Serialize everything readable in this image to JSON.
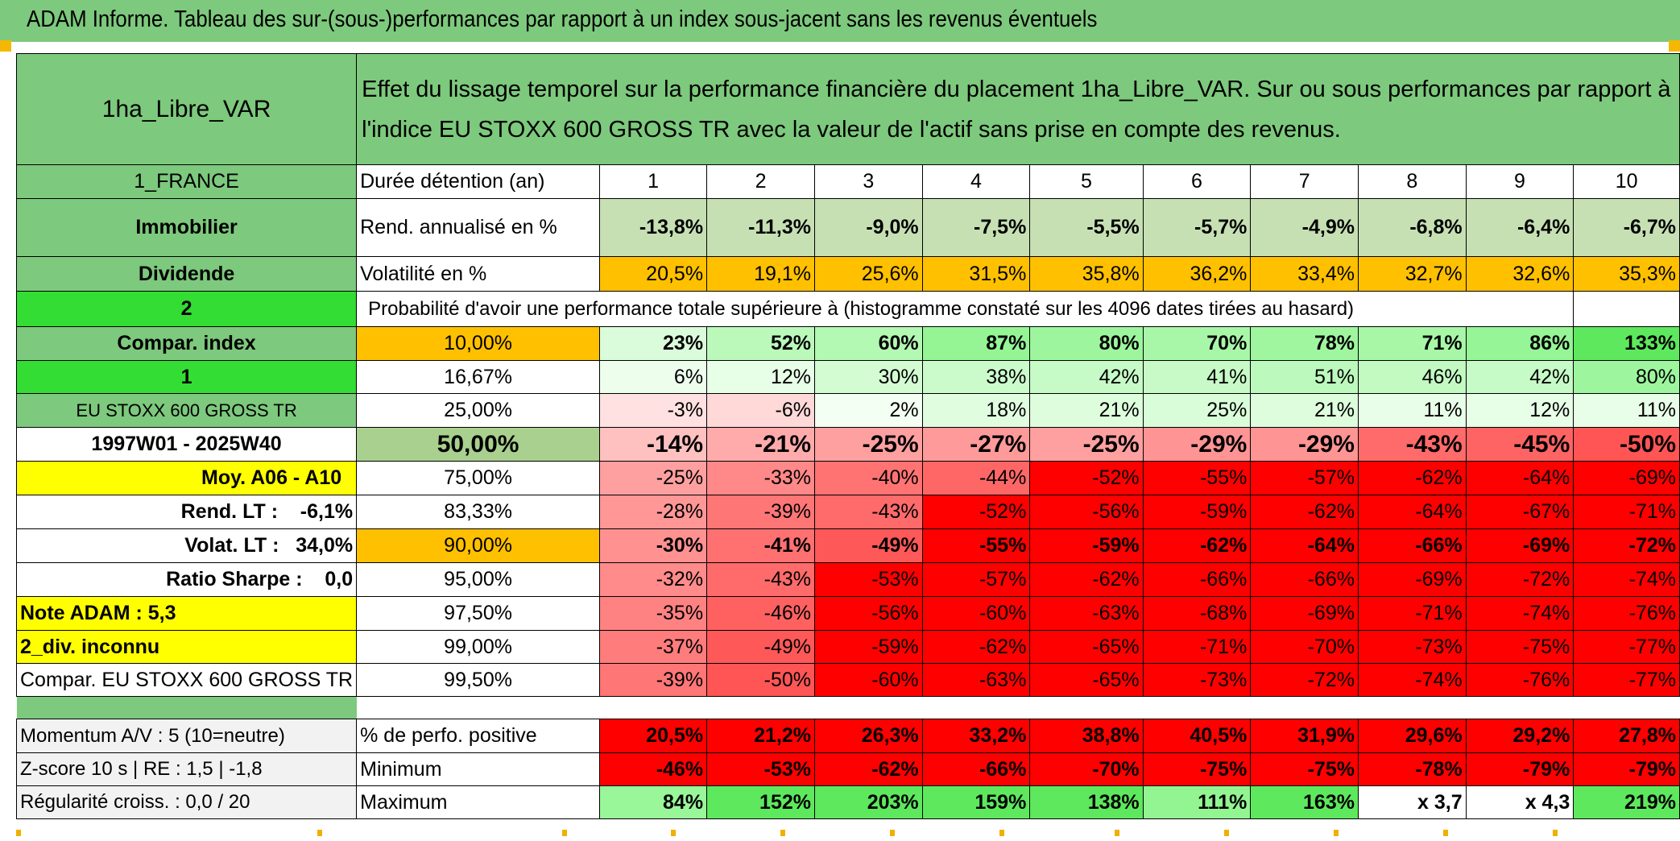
{
  "title": "ADAM Informe. Tableau des sur-(sous-)performances par rapport à un index sous-jacent sans les revenus éventuels",
  "fund_name": "1ha_Libre_VAR",
  "description": "Effet du lissage temporel sur la performance financière du placement 1ha_Libre_VAR. Sur ou sous performances par rapport à l'indice EU STOXX 600 GROSS TR avec la valeur de l'actif sans prise en compte des revenus.",
  "left": {
    "country": "1_FRANCE",
    "sector": "Immobilier",
    "type": "Dividende",
    "num2": "2",
    "compar_index": "Compar. index",
    "num1": "1",
    "index_name": "EU STOXX 600 GROSS TR",
    "period": "1997W01 - 2025W40",
    "moy": "Moy. A06 - A10",
    "rend_lt": "Rend. LT :    -6,1%",
    "volat_lt": "Volat. LT :   34,0%",
    "sharpe": "Ratio Sharpe :    0,0",
    "note": "Note ADAM : 5,3",
    "div": "2_div. inconnu",
    "compar_full": "Compar. EU STOXX 600 GROSS TR",
    "momentum": "Momentum A/V : 5 (10=neutre)",
    "zscore": "Z-score 10 s | RE : 1,5 | -1,8",
    "regularite": "Régularité croiss. : 0,0 / 20"
  },
  "row_labels": {
    "duree": "Durée détention (an)",
    "rend": "Rend. annualisé en %",
    "volat": "Volatilité en %",
    "proba": "Probabilité d'avoir une performance totale supérieure à (histogramme constaté sur les 4096 dates tirées au hasard)",
    "positive": "% de perfo. positive",
    "minimum": "Minimum",
    "maximum": "Maximum"
  },
  "years": [
    "1",
    "2",
    "3",
    "4",
    "5",
    "6",
    "7",
    "8",
    "9",
    "10"
  ],
  "rend": [
    "-13,8%",
    "-11,3%",
    "-9,0%",
    "-7,5%",
    "-5,5%",
    "-5,7%",
    "-4,9%",
    "-6,8%",
    "-6,4%",
    "-6,7%"
  ],
  "volat": [
    "20,5%",
    "19,1%",
    "25,6%",
    "31,5%",
    "35,8%",
    "36,2%",
    "33,4%",
    "32,7%",
    "32,6%",
    "35,3%"
  ],
  "percentiles": [
    {
      "p": "10,00%",
      "values": [
        "23%",
        "52%",
        "60%",
        "87%",
        "80%",
        "70%",
        "78%",
        "71%",
        "86%",
        "133%"
      ]
    },
    {
      "p": "16,67%",
      "values": [
        "6%",
        "12%",
        "30%",
        "38%",
        "42%",
        "41%",
        "51%",
        "46%",
        "42%",
        "80%"
      ]
    },
    {
      "p": "25,00%",
      "values": [
        "-3%",
        "-6%",
        "2%",
        "18%",
        "21%",
        "25%",
        "21%",
        "11%",
        "12%",
        "11%"
      ]
    },
    {
      "p": "50,00%",
      "values": [
        "-14%",
        "-21%",
        "-25%",
        "-27%",
        "-25%",
        "-29%",
        "-29%",
        "-43%",
        "-45%",
        "-50%"
      ]
    },
    {
      "p": "75,00%",
      "values": [
        "-25%",
        "-33%",
        "-40%",
        "-44%",
        "-52%",
        "-55%",
        "-57%",
        "-62%",
        "-64%",
        "-69%"
      ]
    },
    {
      "p": "83,33%",
      "values": [
        "-28%",
        "-39%",
        "-43%",
        "-52%",
        "-56%",
        "-59%",
        "-62%",
        "-64%",
        "-67%",
        "-71%"
      ]
    },
    {
      "p": "90,00%",
      "values": [
        "-30%",
        "-41%",
        "-49%",
        "-55%",
        "-59%",
        "-62%",
        "-64%",
        "-66%",
        "-69%",
        "-72%"
      ]
    },
    {
      "p": "95,00%",
      "values": [
        "-32%",
        "-43%",
        "-53%",
        "-57%",
        "-62%",
        "-66%",
        "-66%",
        "-69%",
        "-72%",
        "-74%"
      ]
    },
    {
      "p": "97,50%",
      "values": [
        "-35%",
        "-46%",
        "-56%",
        "-60%",
        "-63%",
        "-68%",
        "-69%",
        "-71%",
        "-74%",
        "-76%"
      ]
    },
    {
      "p": "99,00%",
      "values": [
        "-37%",
        "-49%",
        "-59%",
        "-62%",
        "-65%",
        "-71%",
        "-70%",
        "-73%",
        "-75%",
        "-77%"
      ]
    },
    {
      "p": "99,50%",
      "values": [
        "-39%",
        "-50%",
        "-60%",
        "-63%",
        "-65%",
        "-73%",
        "-72%",
        "-74%",
        "-76%",
        "-77%"
      ]
    }
  ],
  "positive": [
    "20,5%",
    "21,2%",
    "26,3%",
    "33,2%",
    "38,8%",
    "40,5%",
    "31,9%",
    "29,6%",
    "29,2%",
    "27,8%"
  ],
  "minimum": [
    "-46%",
    "-53%",
    "-62%",
    "-66%",
    "-70%",
    "-75%",
    "-75%",
    "-78%",
    "-79%",
    "-79%"
  ],
  "maximum": [
    "84%",
    "152%",
    "203%",
    "159%",
    "138%",
    "111%",
    "163%",
    "x 3,7",
    "x 4,3",
    "219%"
  ],
  "colors": {
    "title_bg": "#7dc97d",
    "label_green": "#7dc97d",
    "bright_green": "#33dd33",
    "yellow": "#ffff00",
    "orange": "#ffc000",
    "rend_bg": "#c6e0b4",
    "median_label_bg": "#a9d08e",
    "strong_red": "#ff0000",
    "accent_red_text": "#d80000"
  }
}
